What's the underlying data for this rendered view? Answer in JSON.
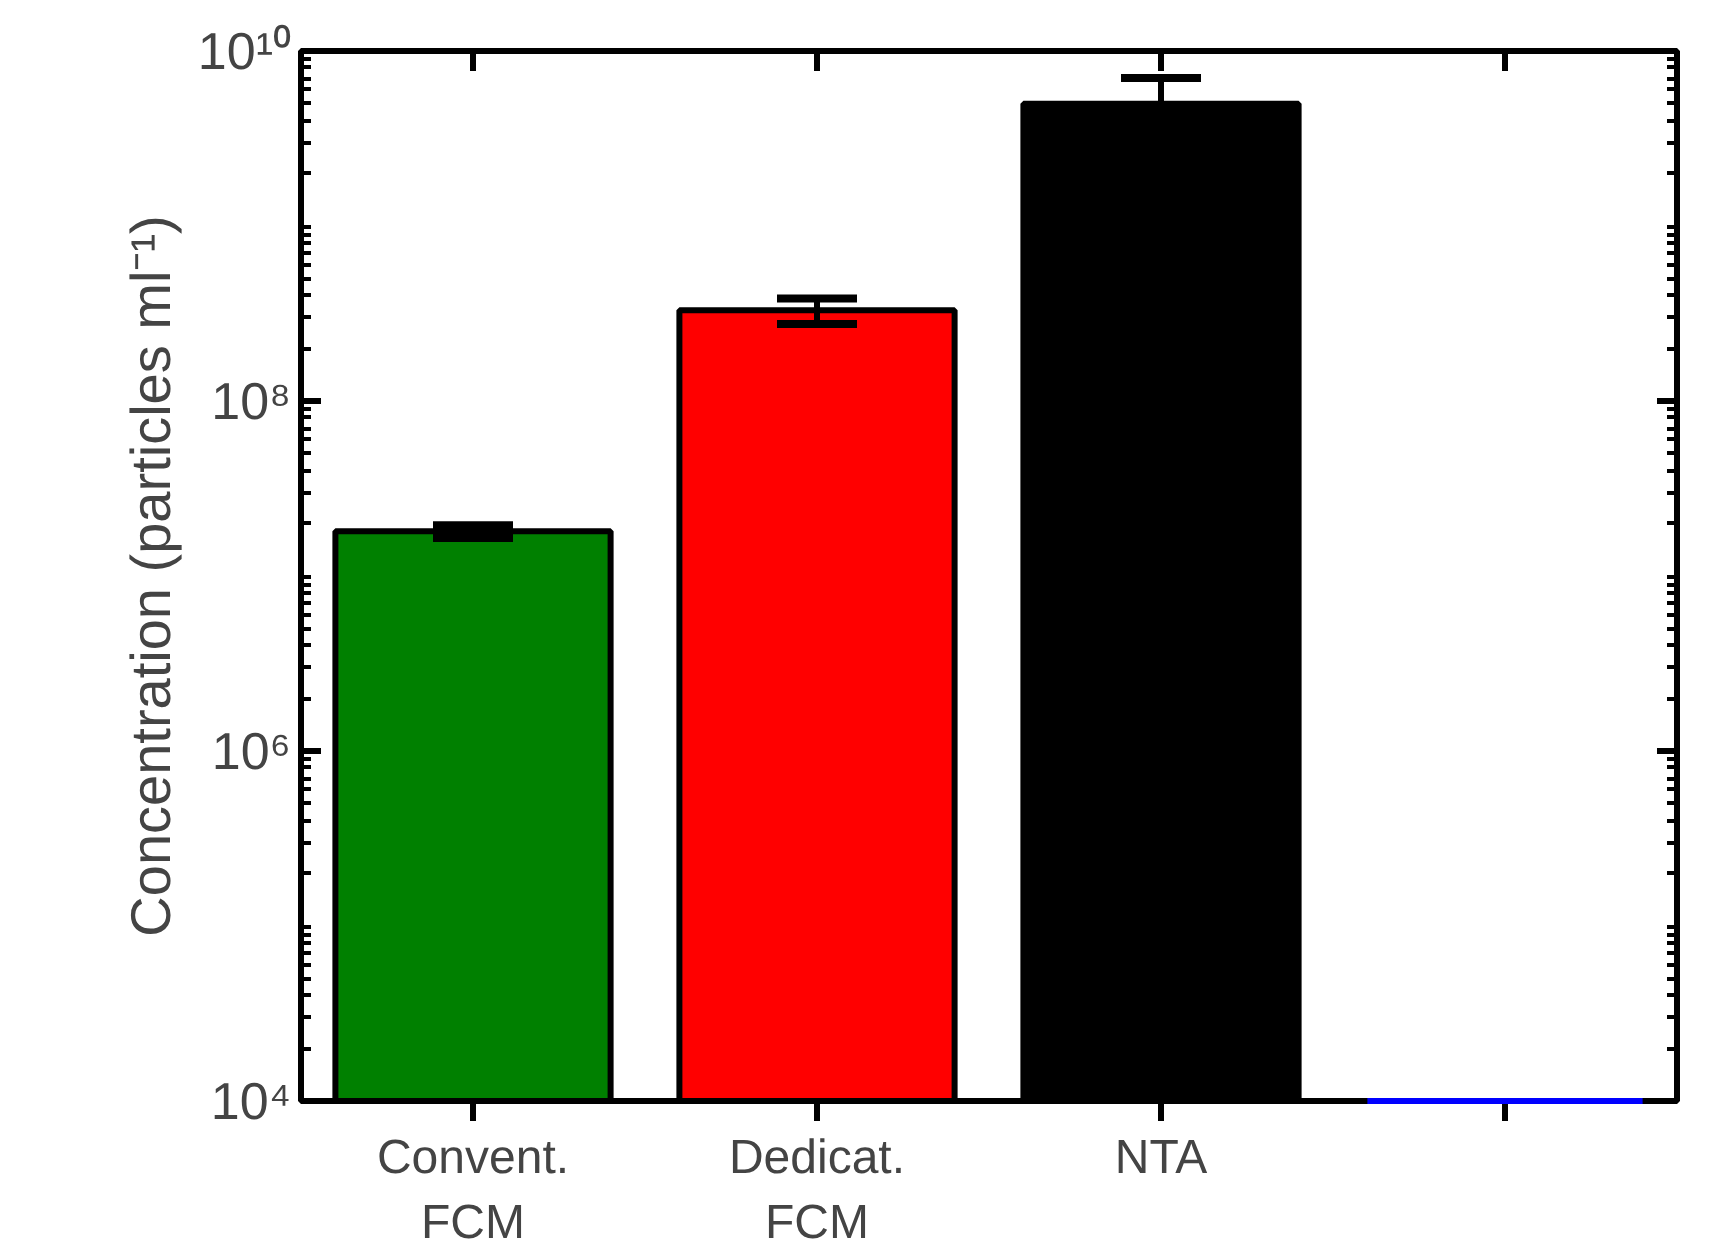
{
  "chart_data": {
    "type": "bar",
    "ylabel": "Concentration (particles ml⁻¹)",
    "categories": [
      "Convent.\nFCM",
      "Dedicat.\nFCM",
      "NTA",
      null
    ],
    "values": [
      18000000,
      330000000,
      5000000000,
      10000
    ],
    "colors": [
      "#008000",
      "#ff0000",
      "#000000",
      "#0000ff"
    ],
    "errors": [
      1500000,
      55000000,
      2000000000,
      null
    ],
    "log": "y",
    "ylim": [
      10000,
      10000000000
    ],
    "yticks": [
      {
        "value": 10000,
        "label": "10⁴"
      },
      {
        "value": 1000000,
        "label": "10⁶"
      },
      {
        "value": 100000000,
        "label": "10⁸"
      },
      {
        "value": 10000000000,
        "label": "10¹⁰"
      }
    ],
    "grid": false
  }
}
